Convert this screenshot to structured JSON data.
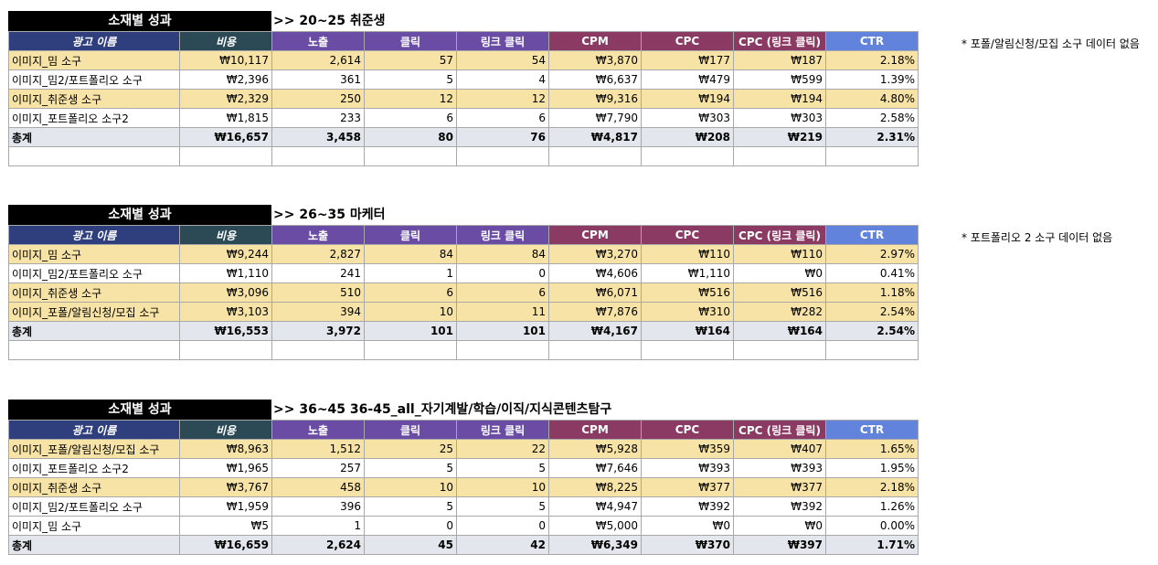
{
  "headers": [
    "광고 이름",
    "비용",
    "노출",
    "클릭",
    "링크 클릭",
    "CPM",
    "CPC",
    "CPC (링크 클릭)",
    "CTR"
  ],
  "sections": [
    {
      "title": "소재별 성과",
      "subtitle": ">> 20~25 취준생",
      "rows": [
        [
          "이미지_밈 소구",
          "₩10,117",
          "2,614",
          "57",
          "54",
          "₩3,870",
          "₩177",
          "₩187",
          "2.18%"
        ],
        [
          "이미지_밈2/포트폴리오 소구",
          "₩2,396",
          "361",
          "5",
          "4",
          "₩6,637",
          "₩479",
          "₩599",
          "1.39%"
        ],
        [
          "이미지_취준생 소구",
          "₩2,329",
          "250",
          "12",
          "12",
          "₩9,316",
          "₩194",
          "₩194",
          "4.80%"
        ],
        [
          "이미지_포트폴리오 소구2",
          "₩1,815",
          "233",
          "6",
          "6",
          "₩7,790",
          "₩303",
          "₩303",
          "2.58%"
        ]
      ],
      "total": [
        "총계",
        "₩16,657",
        "3,458",
        "80",
        "76",
        "₩4,817",
        "₩208",
        "₩219",
        "2.31%"
      ],
      "note": "* 포폴/알림신청/모집 소구 데이터 없음"
    },
    {
      "title": "소재별 성과",
      "subtitle": ">> 26~35 마케터",
      "rows": [
        [
          "이미지_밈 소구",
          "₩9,244",
          "2,827",
          "84",
          "84",
          "₩3,270",
          "₩110",
          "₩110",
          "2.97%"
        ],
        [
          "이미지_밈2/포트폴리오 소구",
          "₩1,110",
          "241",
          "1",
          "0",
          "₩4,606",
          "₩1,110",
          "₩0",
          "0.41%"
        ],
        [
          "이미지_취준생 소구",
          "₩3,096",
          "510",
          "6",
          "6",
          "₩6,071",
          "₩516",
          "₩516",
          "1.18%"
        ],
        [
          "이미지_포폴/알림신청/모집 소구",
          "₩3,103",
          "394",
          "10",
          "11",
          "₩7,876",
          "₩310",
          "₩282",
          "2.54%"
        ]
      ],
      "total": [
        "총계",
        "₩16,553",
        "3,972",
        "101",
        "101",
        "₩4,167",
        "₩164",
        "₩164",
        "2.54%"
      ],
      "note": "* 포트폴리오 2 소구 데이터 없음"
    },
    {
      "title": "소재별 성과",
      "subtitle": ">> 36~45 36-45_all_자기계발/학습/이직/지식콘텐츠탐구",
      "rows": [
        [
          "이미지_포폴/알림신청/모집 소구",
          "₩8,963",
          "1,512",
          "25",
          "22",
          "₩5,928",
          "₩359",
          "₩407",
          "1.65%"
        ],
        [
          "이미지_포트폴리오 소구2",
          "₩1,965",
          "257",
          "5",
          "5",
          "₩7,646",
          "₩393",
          "₩393",
          "1.95%"
        ],
        [
          "이미지_취준생 소구",
          "₩3,767",
          "458",
          "10",
          "10",
          "₩8,225",
          "₩377",
          "₩377",
          "2.18%"
        ],
        [
          "이미지_밈2/포트폴리오 소구",
          "₩1,959",
          "396",
          "5",
          "5",
          "₩4,947",
          "₩392",
          "₩392",
          "1.26%"
        ],
        [
          "이미지_밈 소구",
          "₩5",
          "1",
          "0",
          "0",
          "₩5,000",
          "₩0",
          "₩0",
          "0.00%"
        ]
      ],
      "total": [
        "총계",
        "₩16,659",
        "2,624",
        "45",
        "42",
        "₩6,349",
        "₩370",
        "₩397",
        "1.71%"
      ],
      "note": ""
    }
  ]
}
